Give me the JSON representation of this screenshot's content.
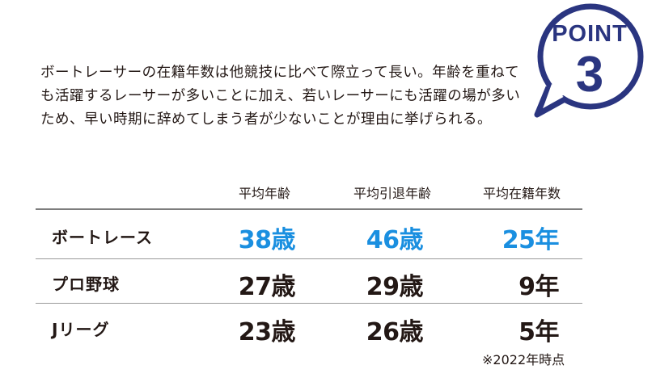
{
  "badge": {
    "label": "POINT",
    "number": "3"
  },
  "intro": {
    "lines": [
      "ボートレーサーの在籍年数は他競技に比べて際立って長い。年齢",
      "を重ねても活躍するレーサーが多いことに加え、若いレーサーにも活躍の場が多いため、早い時期に辞めてしまう者が少ないこと",
      "が理由に挙げられる。"
    ],
    "text": "ボートレーサーの在籍年数は他競技に比べて際立って長い。年齢を重ねても活躍するレーサーが多いことに加え、若いレーサーにも活躍の場が多いため、早い時期に辞めてしまう者が少ないことが理由に挙げられる。"
  },
  "table": {
    "headers": [
      "平均年齢",
      "平均引退年齢",
      "平均在籍年数"
    ],
    "rows": [
      {
        "label": "ボートレース",
        "values": [
          "38歳",
          "46歳",
          "25年"
        ]
      },
      {
        "label": "プロ野球",
        "values": [
          "27歳",
          "29歳",
          "9年"
        ]
      },
      {
        "label": "Jリーグ",
        "values": [
          "23歳",
          "26歳",
          "5年"
        ]
      }
    ]
  },
  "note": "※2022年時点",
  "colors": {
    "badge": "#2a3580",
    "highlight": "#1a8fe0",
    "text": "#231815"
  }
}
